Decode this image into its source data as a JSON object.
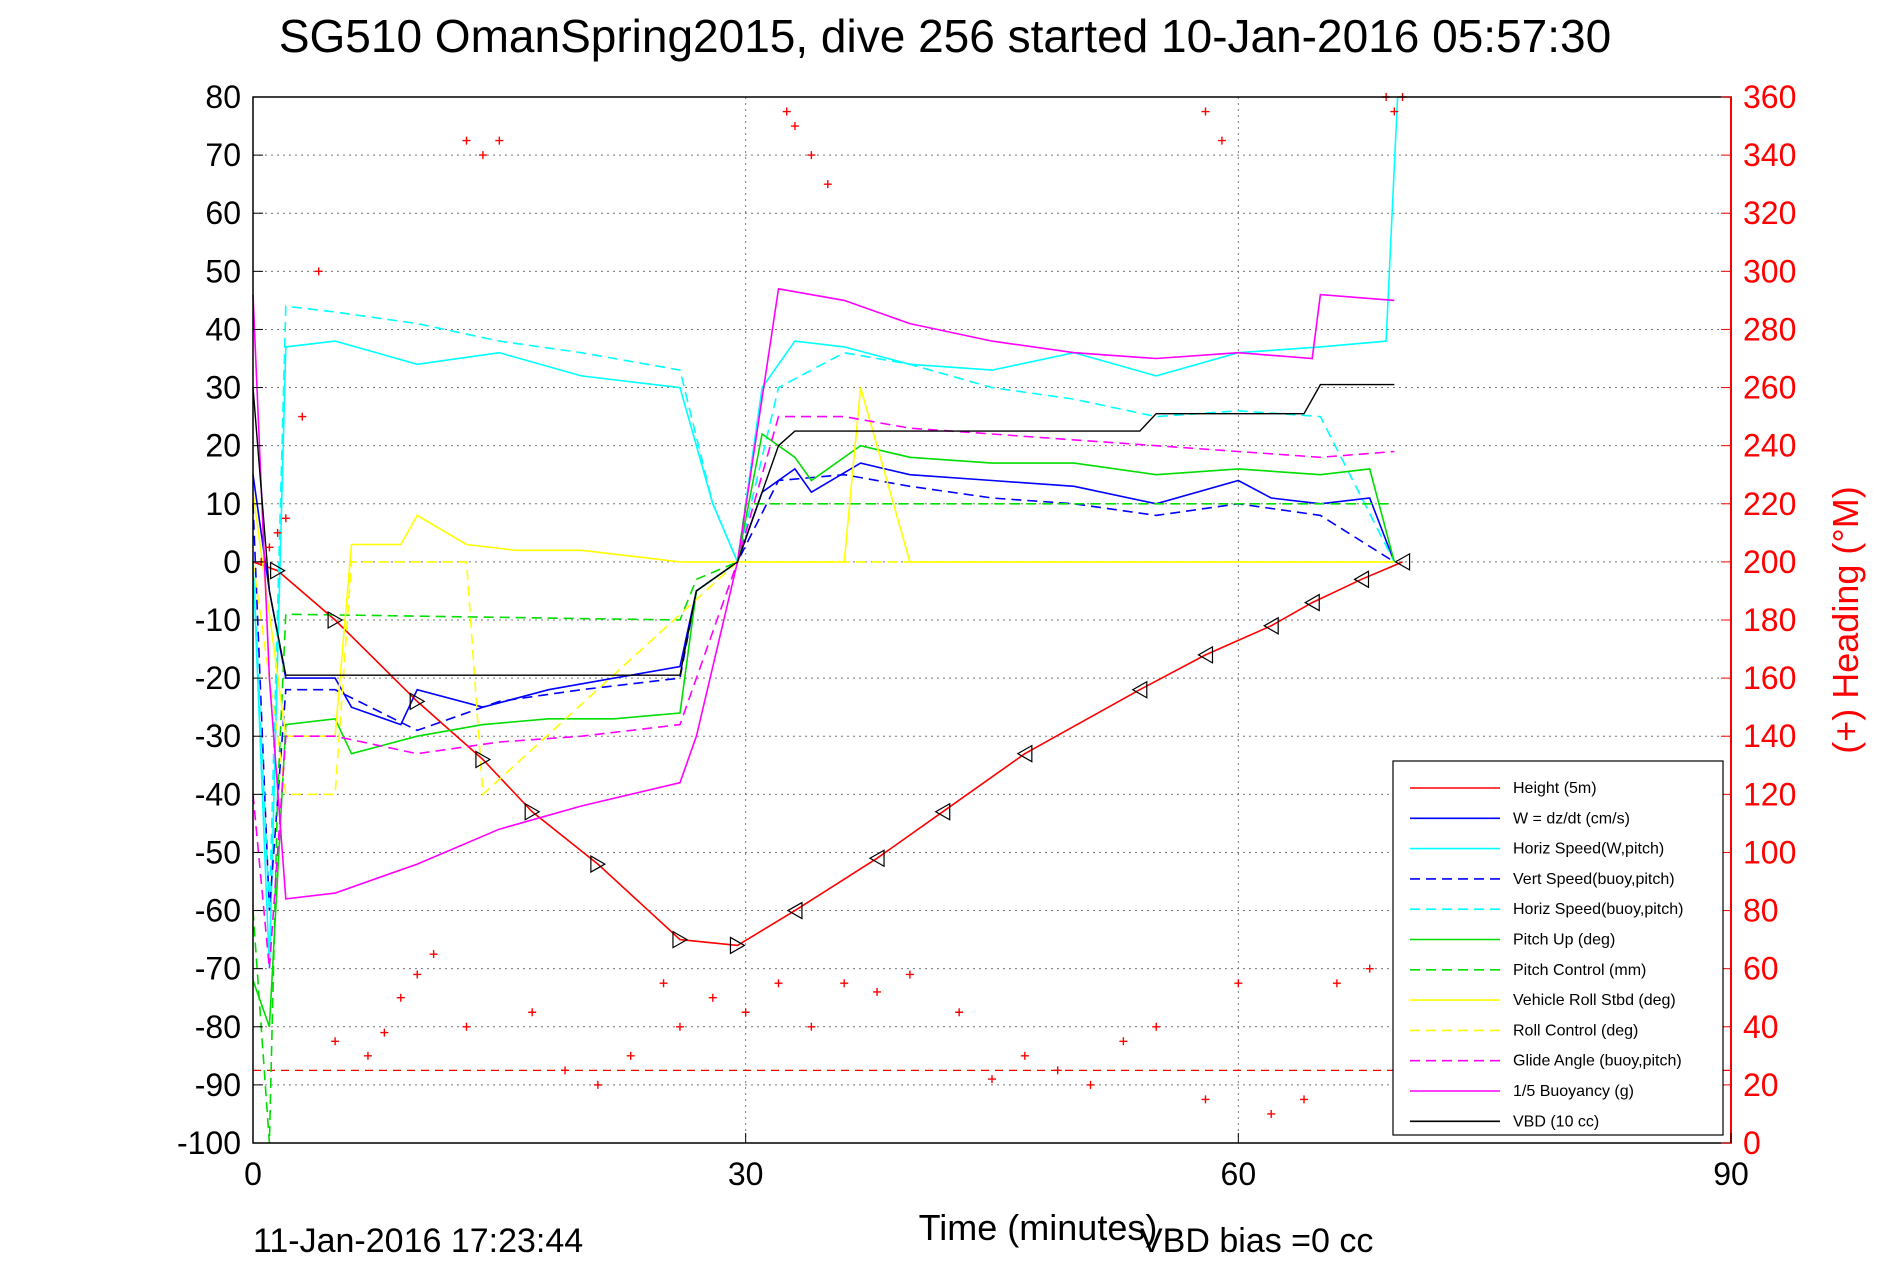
{
  "chart_data": {
    "type": "line",
    "title": "SG510 OmanSpring2015, dive 256 started 10-Jan-2016 05:57:30",
    "xlabel": "Time (minutes)",
    "ylabel_right": "(+) Heading (°M)",
    "xlim": [
      0,
      90
    ],
    "ylim": [
      -100,
      80
    ],
    "ylim_right": [
      0,
      360
    ],
    "xticks": [
      "0",
      "30",
      "60",
      "90"
    ],
    "yticks": [
      "80",
      "70",
      "60",
      "50",
      "40",
      "30",
      "20",
      "10",
      "0",
      "-10",
      "-20",
      "-30",
      "-40",
      "-50",
      "-60",
      "-70",
      "-80",
      "-90",
      "-100"
    ],
    "yticks_right": [
      "360",
      "340",
      "320",
      "300",
      "280",
      "260",
      "240",
      "220",
      "200",
      "180",
      "160",
      "140",
      "120",
      "100",
      "80",
      "60",
      "40",
      "20",
      "0"
    ],
    "grid": true,
    "legend_position": "bottom-right",
    "colors": {
      "heading": "#ff0000",
      "right_axis": "#ff0000"
    },
    "series": [
      {
        "name": "Height (5m)",
        "color": "#ff0000",
        "style": "solid",
        "x": [
          0,
          1.5,
          5,
          10,
          14,
          17,
          21,
          26,
          29.5,
          33,
          38,
          42,
          47,
          54,
          58,
          62,
          64.5,
          67.5,
          70
        ],
        "y": [
          0,
          -1.5,
          -10,
          -24,
          -34,
          -43,
          -52,
          -65,
          -66,
          -60,
          -51,
          -43,
          -33,
          -22,
          -16,
          -11,
          -7,
          -3,
          0
        ]
      },
      {
        "name": "W = dz/dt (cm/s)",
        "color": "#0000ff",
        "style": "solid",
        "x": [
          0,
          1,
          2,
          5,
          6,
          9,
          10,
          14,
          18,
          22,
          26,
          27,
          29.5,
          31,
          33,
          34,
          37,
          40,
          45,
          50,
          55,
          60,
          62,
          65,
          68,
          69.5
        ],
        "y": [
          15,
          -5,
          -20,
          -20,
          -25,
          -28,
          -22,
          -25,
          -22,
          -20,
          -18,
          -5,
          0,
          12,
          16,
          12,
          17,
          15,
          14,
          13,
          10,
          14,
          11,
          10,
          11,
          0
        ]
      },
      {
        "name": "Horiz Speed(W,pitch)",
        "color": "#00ffff",
        "style": "solid",
        "x": [
          0,
          1,
          2,
          5,
          10,
          15,
          20,
          26,
          28,
          29.5,
          31,
          33,
          36,
          40,
          45,
          50,
          55,
          60,
          65,
          69,
          69.7
        ],
        "y": [
          0,
          -70,
          37,
          38,
          34,
          36,
          32,
          30,
          10,
          0,
          30,
          38,
          37,
          34,
          33,
          36,
          32,
          36,
          37,
          38,
          80
        ]
      },
      {
        "name": "Vert Speed(buoy,pitch)",
        "color": "#0000ff",
        "style": "dashed",
        "x": [
          0,
          1,
          2,
          5,
          10,
          15,
          20,
          26,
          27,
          29.5,
          32,
          36,
          40,
          45,
          50,
          55,
          60,
          65,
          69.5
        ],
        "y": [
          10,
          -60,
          -22,
          -22,
          -29,
          -24,
          -22,
          -20,
          -5,
          0,
          14,
          15,
          13,
          11,
          10,
          8,
          10,
          8,
          0
        ]
      },
      {
        "name": "Horiz Speed(buoy,pitch)",
        "color": "#00ffff",
        "style": "dashed",
        "x": [
          0,
          1,
          2,
          5,
          10,
          15,
          20,
          26,
          28,
          29.5,
          32,
          36,
          40,
          45,
          50,
          55,
          60,
          65,
          69.5
        ],
        "y": [
          0,
          -60,
          44,
          43,
          41,
          38,
          36,
          33,
          10,
          0,
          30,
          36,
          34,
          30,
          28,
          25,
          26,
          25,
          0
        ]
      },
      {
        "name": "Pitch Up (deg)",
        "color": "#00dd00",
        "style": "solid",
        "x": [
          0,
          1,
          2,
          5,
          6,
          10,
          14,
          18,
          22,
          26,
          27,
          29.5,
          31,
          33,
          34,
          37,
          40,
          45,
          50,
          55,
          60,
          65,
          68,
          69.5
        ],
        "y": [
          -72,
          -80,
          -28,
          -27,
          -33,
          -30,
          -28,
          -27,
          -27,
          -26,
          -5,
          0,
          22,
          18,
          14,
          20,
          18,
          17,
          17,
          15,
          16,
          15,
          16,
          0
        ]
      },
      {
        "name": "Pitch Control (mm)",
        "color": "#00dd00",
        "style": "dashed",
        "x": [
          0,
          1,
          1.5,
          2,
          26,
          27,
          29.5,
          30,
          69.5
        ],
        "y": [
          -60,
          -100,
          -40,
          -9,
          -10,
          -3,
          0,
          10,
          10
        ]
      },
      {
        "name": "Vehicle Roll Stbd (deg)",
        "color": "#ffff00",
        "style": "solid",
        "x": [
          0,
          2,
          5,
          6,
          9,
          10,
          13,
          16,
          20,
          26,
          29.5,
          33,
          36,
          37,
          40,
          45,
          50,
          55,
          60,
          65,
          69.5
        ],
        "y": [
          12,
          -30,
          -30,
          3,
          3,
          8,
          3,
          2,
          2,
          0,
          0,
          0,
          0,
          30,
          0,
          0,
          0,
          0,
          0,
          0,
          0
        ]
      },
      {
        "name": "Roll Control (deg)",
        "color": "#ffff00",
        "style": "dashed",
        "x": [
          0,
          2,
          5,
          6,
          13,
          14,
          29.5,
          30,
          69.5
        ],
        "y": [
          0,
          -40,
          -40,
          0,
          0,
          -40,
          0,
          0,
          0
        ]
      },
      {
        "name": "Glide Angle (buoy,pitch)",
        "color": "#ff00ff",
        "style": "dashed",
        "x": [
          0,
          1,
          2,
          5,
          10,
          15,
          20,
          26,
          27,
          29.5,
          32,
          36,
          40,
          45,
          50,
          55,
          60,
          65,
          69.5
        ],
        "y": [
          -40,
          -70,
          -30,
          -30,
          -33,
          -31,
          -30,
          -28,
          -20,
          0,
          25,
          25,
          23,
          22,
          21,
          20,
          19,
          18,
          19
        ]
      },
      {
        "name": "1/5 Buoyancy (g)",
        "color": "#ff00ff",
        "style": "solid",
        "x": [
          0,
          1,
          2,
          5,
          10,
          15,
          20,
          26,
          27,
          29.5,
          32,
          36,
          40,
          45,
          50,
          55,
          60,
          64.5,
          65,
          69.5
        ],
        "y": [
          46,
          -20,
          -58,
          -57,
          -52,
          -46,
          -42,
          -38,
          -30,
          0,
          47,
          45,
          41,
          38,
          36,
          35,
          36,
          35,
          46,
          45
        ]
      },
      {
        "name": "VBD (10 cc)",
        "color": "#000000",
        "style": "solid",
        "x": [
          0,
          1,
          2,
          26,
          27,
          29.5,
          32,
          33,
          54,
          55,
          64,
          65,
          69.5
        ],
        "y": [
          30,
          -5,
          -19.5,
          -19.5,
          -5,
          0,
          20,
          22.5,
          22.5,
          25.5,
          25.5,
          30.5,
          30.5
        ]
      },
      {
        "name": "(+) Heading",
        "color": "#ff0000",
        "style": "markers",
        "axis": "right",
        "x": [
          0.5,
          1,
          1.5,
          2,
          3,
          4,
          13,
          14,
          15,
          32.5,
          33,
          34,
          35,
          58,
          59,
          69,
          69.5,
          70,
          5,
          7,
          8,
          9,
          10,
          11,
          13,
          17,
          19,
          21,
          23,
          25,
          26,
          28,
          30,
          32,
          34,
          36,
          38,
          40,
          43,
          45,
          47,
          49,
          51,
          53,
          55,
          58,
          60,
          62,
          64,
          66,
          68
        ],
        "y": [
          200,
          205,
          210,
          215,
          250,
          300,
          345,
          340,
          345,
          355,
          350,
          340,
          330,
          355,
          345,
          360,
          355,
          360,
          35,
          30,
          38,
          50,
          58,
          65,
          40,
          45,
          25,
          20,
          30,
          55,
          40,
          50,
          45,
          55,
          40,
          55,
          52,
          58,
          45,
          22,
          30,
          25,
          20,
          35,
          40,
          15,
          55,
          10,
          15,
          55,
          60
        ]
      }
    ],
    "reference_line": {
      "y": 25,
      "color": "#ff0000",
      "style": "dashed"
    }
  },
  "footer": {
    "timestamp": "11-Jan-2016 17:23:44",
    "vbd_bias": "VBD bias =0 cc"
  }
}
